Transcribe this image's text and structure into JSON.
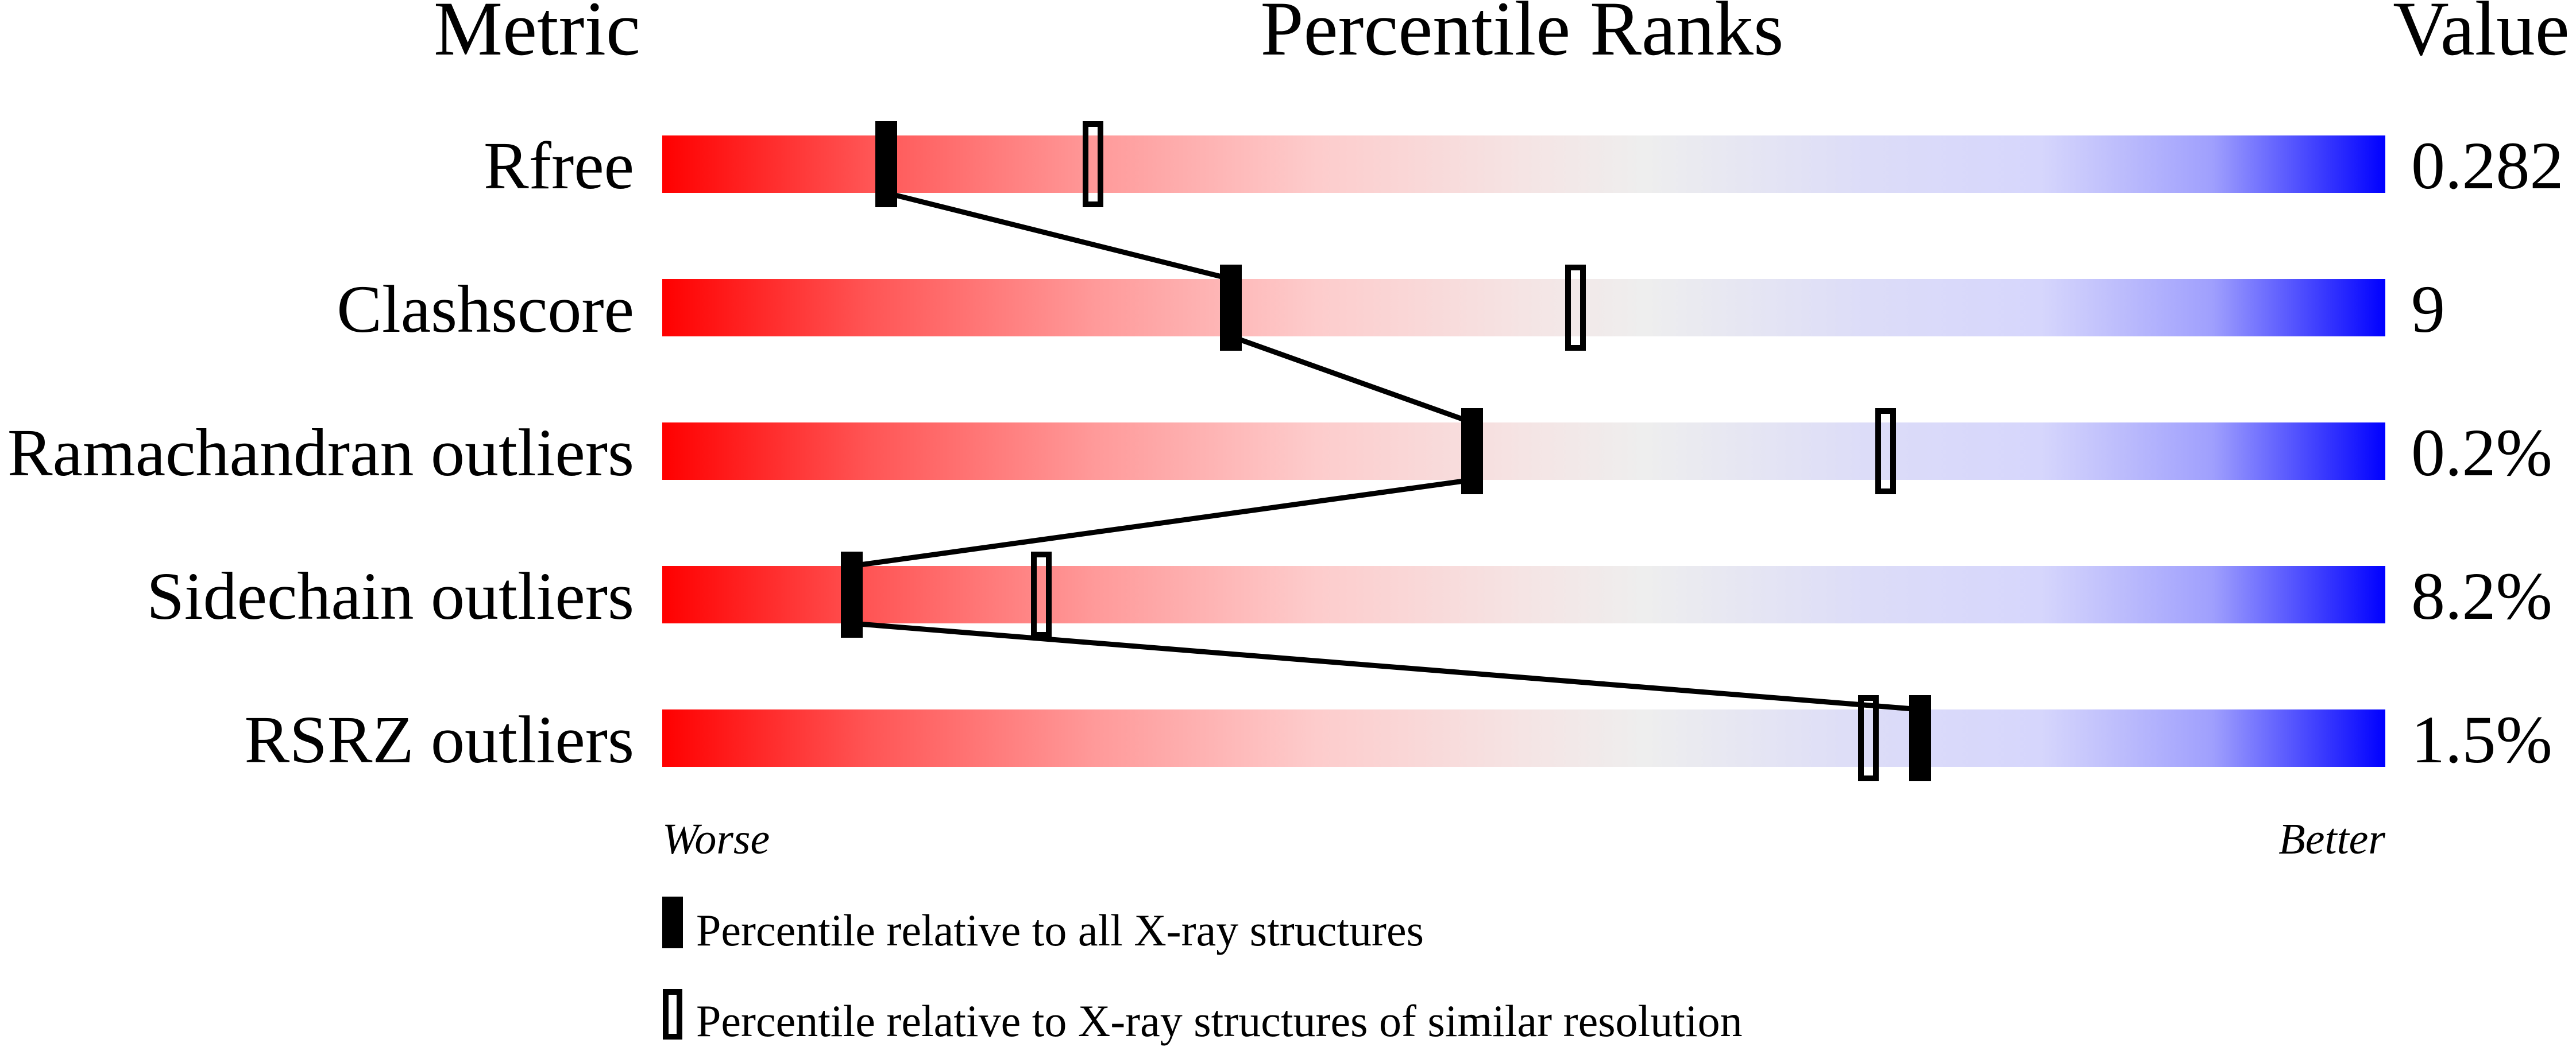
{
  "chart_data": {
    "type": "percentile-ranks",
    "headers": {
      "metric": "Metric",
      "ranks": "Percentile Ranks",
      "value": "Value"
    },
    "xlim": [
      0,
      100
    ],
    "scale_labels": {
      "worse": "Worse",
      "better": "Better"
    },
    "colors": {
      "worse": "#ff0000",
      "middle": "#eeeeee",
      "better": "#0000ff",
      "marker": "#000000"
    },
    "rows": [
      {
        "metric": "Rfree",
        "value": "0.282",
        "percentile_all": 13,
        "percentile_similar": 25
      },
      {
        "metric": "Clashscore",
        "value": "9",
        "percentile_all": 33,
        "percentile_similar": 53
      },
      {
        "metric": "Ramachandran outliers",
        "value": "0.2%",
        "percentile_all": 47,
        "percentile_similar": 71
      },
      {
        "metric": "Sidechain outliers",
        "value": "8.2%",
        "percentile_all": 11,
        "percentile_similar": 22
      },
      {
        "metric": "RSRZ outliers",
        "value": "1.5%",
        "percentile_all": 73,
        "percentile_similar": 70
      }
    ],
    "legend": [
      {
        "marker": "filled",
        "label": "Percentile relative to all X-ray structures"
      },
      {
        "marker": "open",
        "label": "Percentile relative to X-ray structures of similar resolution"
      }
    ]
  }
}
